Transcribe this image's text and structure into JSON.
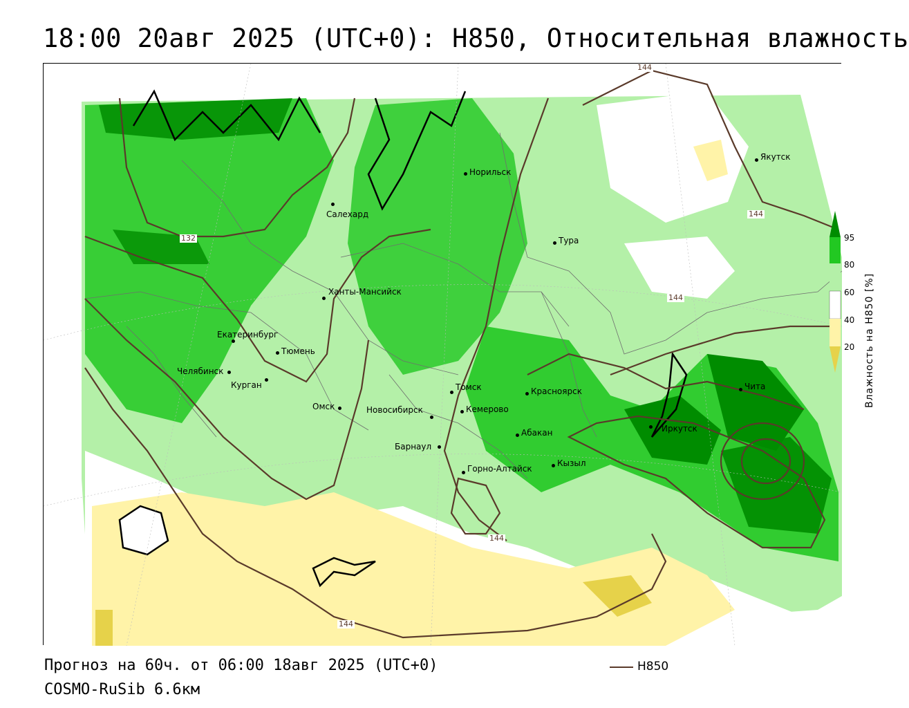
{
  "title": "18:00 20авг 2025 (UTC+0): H850, Относительная влажность",
  "footer": {
    "forecast": "Прогноз на 60ч. от 06:00 18авг 2025 (UTC+0)",
    "model": "COSMO-RuSib 6.6км"
  },
  "legend": {
    "label": "H850",
    "color": "#5a3a2a"
  },
  "colorbar": {
    "title": "Влажность на H850 [%]",
    "ticks": [
      "95",
      "80",
      "60",
      "40",
      "20"
    ],
    "colors": {
      "very_high": "#008c00",
      "high": "#22c822",
      "medium": "#b4f0a8",
      "low": "#ffffff",
      "dry": "#fff3a8",
      "very_dry": "#e6d24a"
    }
  },
  "cities": [
    {
      "name": "Якутск"
    },
    {
      "name": "Норильск"
    },
    {
      "name": "Салехард"
    },
    {
      "name": "Тура"
    },
    {
      "name": "Ханты-Мансийск"
    },
    {
      "name": "Екатеринбург"
    },
    {
      "name": "Тюмень"
    },
    {
      "name": "Челябинск"
    },
    {
      "name": "Курган"
    },
    {
      "name": "Омск"
    },
    {
      "name": "Новосибирск"
    },
    {
      "name": "Томск"
    },
    {
      "name": "Кемерово"
    },
    {
      "name": "Красноярск"
    },
    {
      "name": "Абакан"
    },
    {
      "name": "Барнаул"
    },
    {
      "name": "Горно-Алтайск"
    },
    {
      "name": "Кызыл"
    },
    {
      "name": "Иркутск"
    },
    {
      "name": "Чита"
    }
  ],
  "contour_labels": [
    "144",
    "144",
    "144",
    "132",
    "144",
    "144"
  ]
}
